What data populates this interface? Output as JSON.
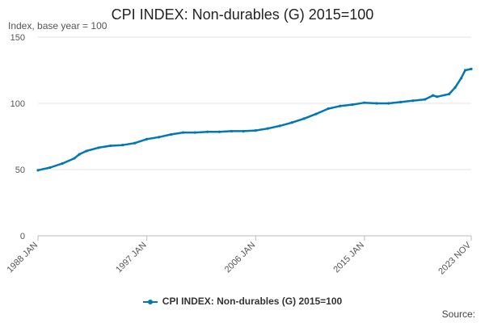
{
  "header": {
    "title": "CPI INDEX: Non-durables (G) 2015=100",
    "subtitle": "Index, base year = 100"
  },
  "legend": {
    "label": "CPI INDEX: Non-durables (G) 2015=100"
  },
  "footer": {
    "source": "Source:"
  },
  "colors": {
    "series": "#0077b6",
    "grid": "#e3e3e3",
    "axis": "#bbbbbb"
  },
  "chart_data": {
    "type": "line",
    "title": "CPI INDEX: Non-durables (G) 2015=100",
    "ylabel": "Index, base year = 100",
    "xlabel": "",
    "xlim": [
      "1988 JAN",
      "2023 NOV"
    ],
    "ylim": [
      0,
      150
    ],
    "y_ticks": [
      0,
      50,
      100,
      150
    ],
    "x_ticks": [
      "1988 JAN",
      "1997 JAN",
      "2006 JAN",
      "2015 JAN",
      "2023 NOV"
    ],
    "grid": "horizontal",
    "legend_position": "bottom",
    "series": [
      {
        "name": "CPI INDEX: Non-durables (G) 2015=100",
        "points": [
          [
            "1988 JAN",
            49.5
          ],
          [
            "1989 JAN",
            51.5
          ],
          [
            "1990 JAN",
            54.5
          ],
          [
            "1991 JAN",
            58.5
          ],
          [
            "1991 JUN",
            61.5
          ],
          [
            "1992 JAN",
            64.0
          ],
          [
            "1993 JAN",
            66.5
          ],
          [
            "1994 JAN",
            68.0
          ],
          [
            "1995 JAN",
            68.5
          ],
          [
            "1996 JAN",
            70.0
          ],
          [
            "1997 JAN",
            73.0
          ],
          [
            "1998 JAN",
            74.5
          ],
          [
            "1999 JAN",
            76.5
          ],
          [
            "2000 JAN",
            78.0
          ],
          [
            "2001 JAN",
            78.0
          ],
          [
            "2002 JAN",
            78.5
          ],
          [
            "2003 JAN",
            78.5
          ],
          [
            "2004 JAN",
            79.0
          ],
          [
            "2005 JAN",
            79.0
          ],
          [
            "2006 JAN",
            79.5
          ],
          [
            "2007 JAN",
            81.0
          ],
          [
            "2008 JAN",
            83.0
          ],
          [
            "2009 JAN",
            85.5
          ],
          [
            "2010 JAN",
            88.5
          ],
          [
            "2011 JAN",
            92.0
          ],
          [
            "2012 JAN",
            96.0
          ],
          [
            "2013 JAN",
            98.0
          ],
          [
            "2014 JAN",
            99.0
          ],
          [
            "2015 JAN",
            100.5
          ],
          [
            "2016 JAN",
            100.0
          ],
          [
            "2017 JAN",
            100.0
          ],
          [
            "2018 JAN",
            101.0
          ],
          [
            "2019 JAN",
            102.0
          ],
          [
            "2020 JAN",
            103.0
          ],
          [
            "2020 SEP",
            106.0
          ],
          [
            "2021 JAN",
            105.0
          ],
          [
            "2022 JAN",
            107.0
          ],
          [
            "2022 JUL",
            112.0
          ],
          [
            "2023 JAN",
            119.0
          ],
          [
            "2023 MAY",
            125.0
          ],
          [
            "2023 NOV",
            126.0
          ]
        ]
      }
    ]
  }
}
